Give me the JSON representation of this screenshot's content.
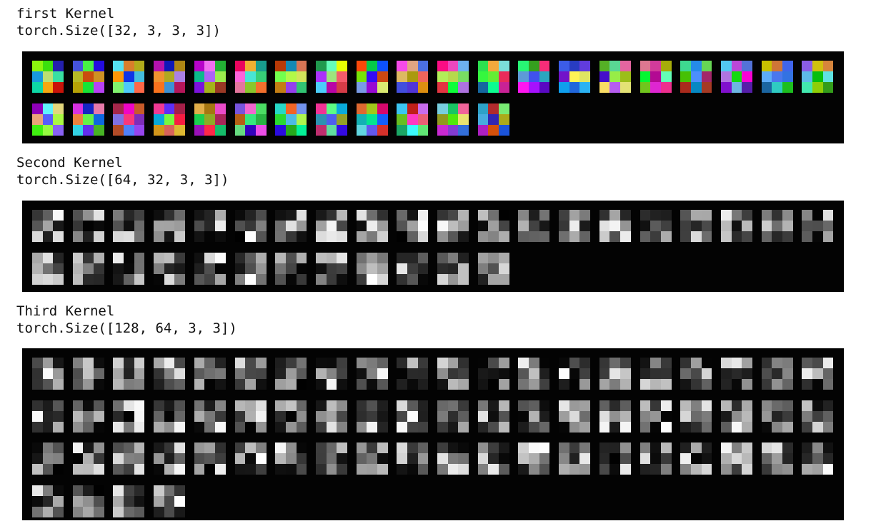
{
  "sections": [
    {
      "id": "first",
      "title": "first Kernel",
      "shape": "torch.Size([32, 3, 3, 3])",
      "count": 32,
      "mode": "color",
      "seed": 17
    },
    {
      "id": "second",
      "title": "Second Kernel",
      "shape": "torch.Size([64, 32, 3, 3])",
      "count": 32,
      "mode": "gray",
      "seed": 101
    },
    {
      "id": "third",
      "title": "Third Kernel",
      "shape": "torch.Size([128, 64, 3, 3])",
      "count": 64,
      "mode": "gray",
      "seed": 313
    }
  ],
  "colors": {
    "page_background": "#ffffff",
    "panel_background": "#030303",
    "text": "#111111"
  }
}
